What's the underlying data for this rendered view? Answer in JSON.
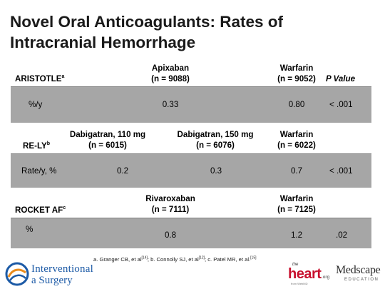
{
  "title": {
    "line1": "Novel Oral Anticoagulants: Rates of",
    "line2": "Intracranial Hemorrhage"
  },
  "aristotle": {
    "trial": "ARISTOTLE",
    "trial_sup": "a",
    "col1_name": "Apixaban",
    "col1_n": "(n = 9088)",
    "warfarin_name": "Warfarin",
    "warfarin_n": "(n = 9052)",
    "pvalue_label": "P Value",
    "row_label": "%/y",
    "col1_value": "0.33",
    "warfarin_value": "0.80",
    "p_value": "< .001"
  },
  "rely": {
    "trial": "RE-LY",
    "trial_sup": "b",
    "col1_name": "Dabigatran, 110 mg",
    "col1_n": "(n = 6015)",
    "col2_name": "Dabigatran, 150 mg",
    "col2_n": "(n = 6076)",
    "warfarin_name": "Warfarin",
    "warfarin_n": "(n = 6022)",
    "row_label": "Rate/y, %",
    "col1_value": "0.2",
    "col2_value": "0.3",
    "warfarin_value": "0.7",
    "p_value": "< .001"
  },
  "rocket": {
    "trial": "ROCKET AF",
    "trial_sup": "c",
    "col1_name": "Rivaroxaban",
    "col1_n": "(n = 7111)",
    "warfarin_name": "Warfarin",
    "warfarin_n": "(n = 7125)",
    "row_label": "%",
    "col1_value": "0.8",
    "warfarin_value": "1.2",
    "p_value": ".02"
  },
  "footnote": {
    "a_text": "a. Granger CB, et al",
    "a_ref": "[14]",
    "b_text": "; b. Connolly SJ, et al",
    "b_ref": "[12]",
    "c_text": "; c. Patel MR, et al.",
    "c_ref": "[15]"
  },
  "logos": {
    "interventional_line1": "Interventional",
    "interventional_line2": "a Surgery",
    "heart_the": "the",
    "heart_word": "heart",
    "heart_org": ".org",
    "heart_sub": "from WebMD",
    "medscape_word": "Medscape",
    "medscape_edu": "EDUCATION"
  },
  "colors": {
    "band": "#a6a6a6",
    "interventional_blue": "#1c5aa6",
    "heart_red": "#c8102e"
  }
}
